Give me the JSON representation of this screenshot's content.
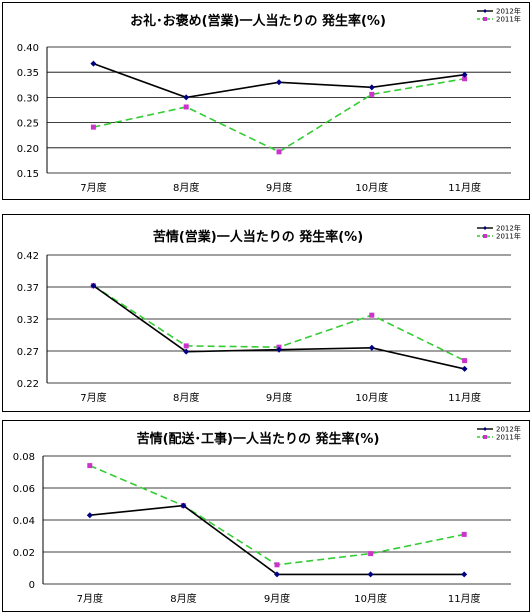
{
  "colors": {
    "series_2012": "#000000",
    "series_2011": "#33cc33",
    "marker_2012": "#000080",
    "marker_2011": "#cc33cc"
  },
  "chart_data": [
    {
      "type": "line",
      "title": "お礼･お褒め(営業)一人当たりの 発生率(%)",
      "categories": [
        "7月度",
        "8月度",
        "9月度",
        "10月度",
        "11月度"
      ],
      "yticks": [
        "0.40",
        "0.35",
        "0.30",
        "0.25",
        "0.20",
        "0.15"
      ],
      "ylim": [
        0.15,
        0.4
      ],
      "series": [
        {
          "name": "2012年",
          "values": [
            0.367,
            0.3,
            0.33,
            0.32,
            0.345
          ]
        },
        {
          "name": "2011年",
          "values": [
            0.241,
            0.281,
            0.192,
            0.306,
            0.337
          ]
        }
      ]
    },
    {
      "type": "line",
      "title": "苦情(営業)一人当たりの 発生率(%)",
      "categories": [
        "7月度",
        "8月度",
        "9月度",
        "10月度",
        "11月度"
      ],
      "yticks": [
        "0.42",
        "0.37",
        "0.32",
        "0.27",
        "0.22"
      ],
      "ylim": [
        0.22,
        0.42
      ],
      "series": [
        {
          "name": "2012年",
          "values": [
            0.372,
            0.269,
            0.272,
            0.275,
            0.242
          ]
        },
        {
          "name": "2011年",
          "values": [
            0.372,
            0.278,
            0.276,
            0.326,
            0.255
          ]
        }
      ]
    },
    {
      "type": "line",
      "title": "苦情(配送･工事)一人当たりの 発生率(%)",
      "categories": [
        "7月度",
        "8月度",
        "9月度",
        "10月度",
        "11月度"
      ],
      "yticks": [
        "0.08",
        "0.06",
        "0.04",
        "0.02",
        "0"
      ],
      "ylim": [
        0,
        0.08
      ],
      "series": [
        {
          "name": "2012年",
          "values": [
            0.043,
            0.049,
            0.006,
            0.006,
            0.006
          ]
        },
        {
          "name": "2011年",
          "values": [
            0.074,
            0.049,
            0.012,
            0.019,
            0.031
          ]
        }
      ]
    }
  ]
}
